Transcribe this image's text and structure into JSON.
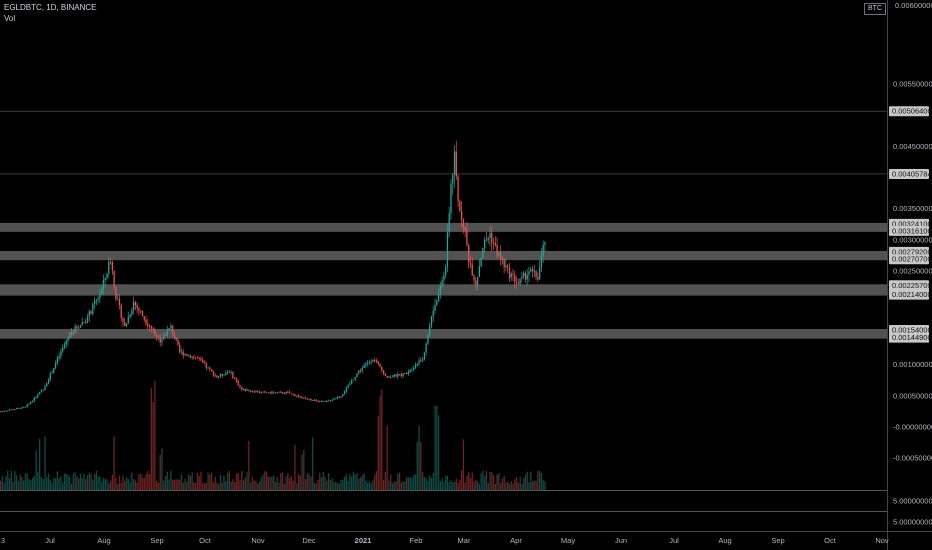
{
  "header": {
    "symbol_line": "EGLDBTC, 1D, BINANCE",
    "volume_label": "Vol"
  },
  "currency_badge": "BTC",
  "colors": {
    "background": "#000000",
    "up_candle": "#26a69a",
    "down_candle": "#ef5350",
    "zone_band": "#6e6e6e",
    "level_line": "#9e9e9e"
  },
  "chart_data": {
    "type": "candlestick",
    "title": "",
    "symbol": "EGLDBTC",
    "interval": "1D",
    "exchange": "BINANCE",
    "x_ticks": [
      "3",
      "Jul",
      "Aug",
      "Sep",
      "Oct",
      "Nov",
      "Dec",
      "2021",
      "Feb",
      "Mar",
      "Apr",
      "May",
      "Jun",
      "Jul",
      "Aug",
      "Sep",
      "Oct",
      "Nov"
    ],
    "y_ticks": [
      "0.00550000",
      "0.00450000",
      "0.00350000",
      "0.00300000",
      "0.00250000",
      "0.00100000",
      "0.00050000",
      "-0.00000000",
      "-0.00050000"
    ],
    "y_top_partial": "0.00600000",
    "volume_ticks": [
      "5.00000000",
      "5.00000000"
    ],
    "ylim": [
      -0.0006,
      0.006
    ],
    "grid": false,
    "levels": [
      {
        "value": 0.005064,
        "label": "0.00506400",
        "kind": "line"
      },
      {
        "value": 0.00405784,
        "label": "0.00405784",
        "kind": "line"
      }
    ],
    "zones": [
      {
        "top": 0.003241,
        "bottom": 0.003161,
        "top_label": "0.00324100",
        "bottom_label": "0.00316100"
      },
      {
        "top": 0.002792,
        "bottom": 0.002707,
        "top_label": "0.00279200",
        "bottom_label": "0.00270700"
      },
      {
        "top": 0.002257,
        "bottom": 0.00214,
        "top_label": "0.00225700",
        "bottom_label": "0.00214000"
      },
      {
        "top": 0.00154,
        "bottom": 0.001449,
        "top_label": "0.00154000",
        "bottom_label": "0.00144900"
      }
    ],
    "price_path": [
      [
        "2020-06-01",
        0.00025
      ],
      [
        "2020-06-15",
        0.00032
      ],
      [
        "2020-06-25",
        0.0006
      ],
      [
        "2020-07-10",
        0.0015
      ],
      [
        "2020-07-20",
        0.00175
      ],
      [
        "2020-07-28",
        0.0022
      ],
      [
        "2020-08-02",
        0.0027
      ],
      [
        "2020-08-05",
        0.0021
      ],
      [
        "2020-08-10",
        0.0016
      ],
      [
        "2020-08-15",
        0.002
      ],
      [
        "2020-08-22",
        0.0017
      ],
      [
        "2020-08-30",
        0.0014
      ],
      [
        "2020-09-05",
        0.0016
      ],
      [
        "2020-09-10",
        0.0012
      ],
      [
        "2020-09-20",
        0.0011
      ],
      [
        "2020-10-01",
        0.0008
      ],
      [
        "2020-10-08",
        0.0009
      ],
      [
        "2020-10-15",
        0.0006
      ],
      [
        "2020-10-28",
        0.00055
      ],
      [
        "2020-11-10",
        0.00055
      ],
      [
        "2020-11-20",
        0.00045
      ],
      [
        "2020-12-01",
        0.0004
      ],
      [
        "2020-12-10",
        0.0005
      ],
      [
        "2020-12-20",
        0.0009
      ],
      [
        "2020-12-28",
        0.0011
      ],
      [
        "2021-01-05",
        0.0008
      ],
      [
        "2021-01-15",
        0.00085
      ],
      [
        "2021-01-25",
        0.0011
      ],
      [
        "2021-02-01",
        0.002
      ],
      [
        "2021-02-04",
        0.0022
      ],
      [
        "2021-02-07",
        0.0026
      ],
      [
        "2021-02-10",
        0.0039
      ],
      [
        "2021-02-12",
        0.0043
      ],
      [
        "2021-02-14",
        0.0036
      ],
      [
        "2021-02-17",
        0.0033
      ],
      [
        "2021-02-20",
        0.0027
      ],
      [
        "2021-02-24",
        0.0023
      ],
      [
        "2021-02-28",
        0.0029
      ],
      [
        "2021-03-04",
        0.0031
      ],
      [
        "2021-03-08",
        0.0028
      ],
      [
        "2021-03-14",
        0.0025
      ],
      [
        "2021-03-20",
        0.0023
      ],
      [
        "2021-03-26",
        0.0025
      ],
      [
        "2021-03-31",
        0.0024
      ],
      [
        "2021-04-04",
        0.003
      ]
    ],
    "volume_spike_dates": [
      "2020-08-26",
      "2021-01-01",
      "2021-02-02"
    ]
  }
}
